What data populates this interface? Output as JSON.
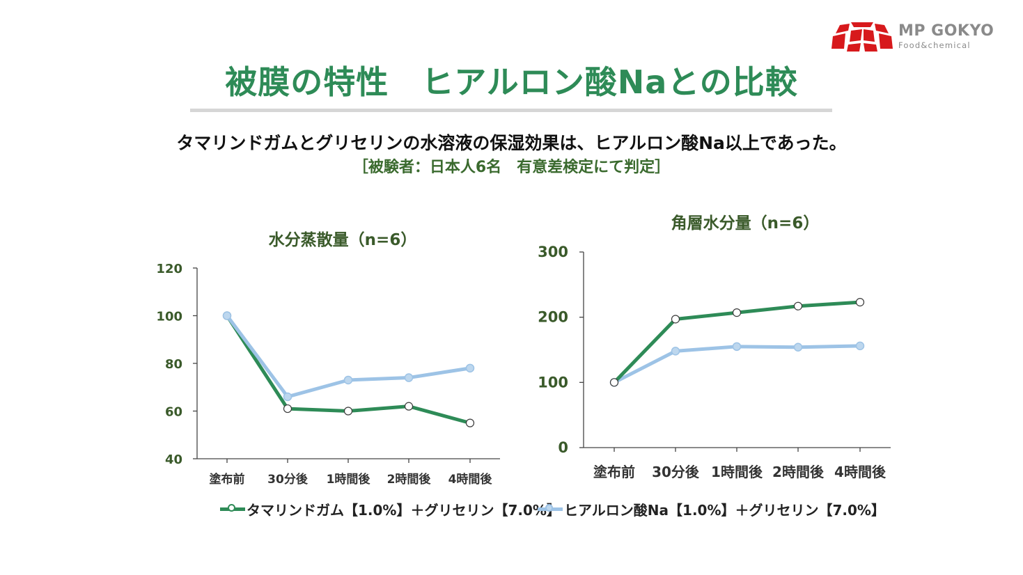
{
  "brand": {
    "name": "MP GOKYO",
    "tagline": "Food&chemical",
    "logo_colors": [
      "#d7191c",
      "#ffffff"
    ]
  },
  "title": "被膜の特性　ヒアルロン酸Naとの比較",
  "subtitle": "タマリンドガムとグリセリンの水溶液の保湿効果は、ヒアルロン酸Na以上であった。",
  "note": "［被験者：日本人6名　有意差検定にて判定］",
  "colors": {
    "title": "#2e8b57",
    "series_green": "#2e8b57",
    "series_blue": "#9dc3e6"
  },
  "chart_data": [
    {
      "type": "line",
      "title": "水分蒸散量（n=6）",
      "categories": [
        "塗布前",
        "30分後",
        "1時間後",
        "2時間後",
        "4時間後"
      ],
      "ylim": [
        40,
        120
      ],
      "yticks": [
        "40",
        "60",
        "80",
        "100",
        "120"
      ],
      "series": [
        {
          "name": "タマリンドガム【1.0%】＋グリセリン【7.0%】",
          "color": "#2e8b57",
          "marker": "hollow-circle",
          "values": [
            100,
            61,
            60,
            62,
            55
          ]
        },
        {
          "name": "ヒアルロン酸Na【1.0%】＋グリセリン【7.0%】",
          "color": "#9dc3e6",
          "marker": "filled-circle",
          "values": [
            100,
            66,
            73,
            74,
            78
          ]
        }
      ]
    },
    {
      "type": "line",
      "title": "角層水分量（n=6）",
      "categories": [
        "塗布前",
        "30分後",
        "1時間後",
        "2時間後",
        "4時間後"
      ],
      "ylim": [
        0,
        300
      ],
      "yticks": [
        "0",
        "100",
        "200",
        "300"
      ],
      "series": [
        {
          "name": "タマリンドガム【1.0%】＋グリセリン【7.0%】",
          "color": "#2e8b57",
          "marker": "hollow-circle",
          "values": [
            100,
            197,
            207,
            217,
            223
          ]
        },
        {
          "name": "ヒアルロン酸Na【1.0%】＋グリセリン【7.0%】",
          "color": "#9dc3e6",
          "marker": "filled-circle",
          "values": [
            100,
            148,
            155,
            154,
            156
          ]
        }
      ]
    }
  ],
  "legend": [
    {
      "label": "タマリンドガム【1.0%】＋グリセリン【7.0%】"
    },
    {
      "label": "ヒアルロン酸Na【1.0%】＋グリセリン【7.0%】"
    }
  ]
}
